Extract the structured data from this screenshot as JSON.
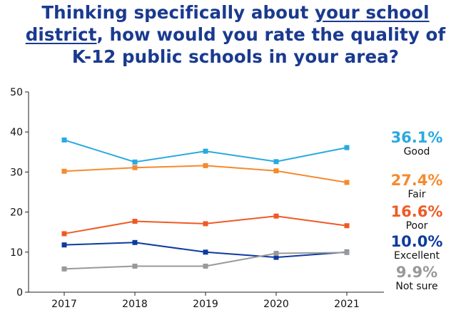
{
  "title": {
    "part1": "Thinking specifically about ",
    "underlined1": "your school",
    "underlined2": "district",
    "part2": ", how would you rate the quality of",
    "line3": "K-12 public schools in your area?"
  },
  "colors": {
    "title": "#1a3a8f",
    "Good": "#29a9e0",
    "Fair": "#f58a2e",
    "Poor": "#ef5a24",
    "Excellent": "#0d3aa0",
    "Not sure": "#999999"
  },
  "chart_data": {
    "type": "line",
    "title": "Thinking specifically about your school district, how would you rate the quality of K-12 public schools in your area?",
    "x": [
      "2017",
      "2018",
      "2019",
      "2020",
      "2021"
    ],
    "ylim": [
      0,
      50
    ],
    "yticks": [
      0,
      10,
      20,
      30,
      40,
      50
    ],
    "grid": false,
    "marker": "square",
    "series": [
      {
        "name": "Good",
        "values": [
          38.0,
          32.5,
          35.2,
          32.6,
          36.1
        ],
        "label": "36.1%"
      },
      {
        "name": "Fair",
        "values": [
          30.2,
          31.1,
          31.6,
          30.3,
          27.4
        ],
        "label": "27.4%"
      },
      {
        "name": "Poor",
        "values": [
          14.6,
          17.7,
          17.1,
          19.0,
          16.6
        ],
        "label": "16.6%"
      },
      {
        "name": "Excellent",
        "values": [
          11.8,
          12.4,
          10.0,
          8.7,
          10.0
        ],
        "label": "10.0%"
      },
      {
        "name": "Not sure",
        "values": [
          5.8,
          6.5,
          6.5,
          9.7,
          9.9
        ],
        "label": "9.9%"
      }
    ]
  }
}
